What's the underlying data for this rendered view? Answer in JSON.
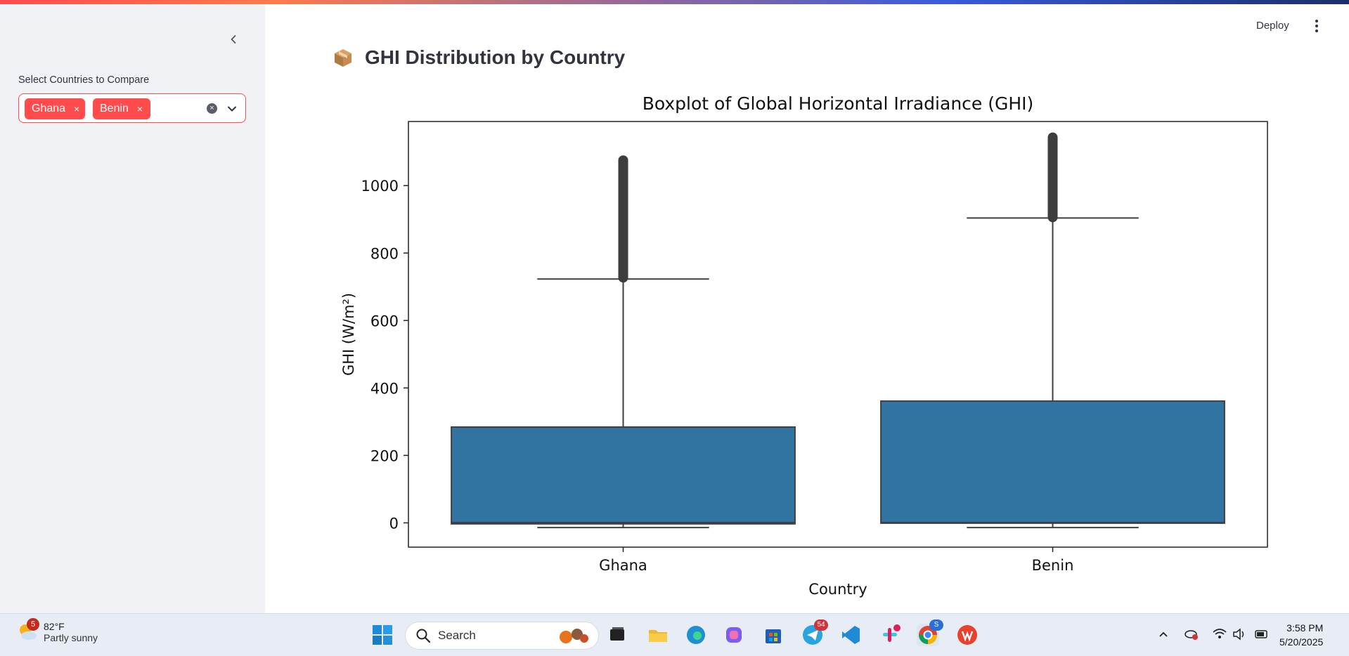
{
  "sidebar": {
    "select_label": "Select Countries to Compare",
    "selected": [
      "Ghana",
      "Benin"
    ],
    "chip_remove": "×",
    "clear_symbol": "×"
  },
  "header": {
    "deploy_label": "Deploy"
  },
  "page": {
    "title": "GHI Distribution by Country",
    "title_icon": "package-icon"
  },
  "chart_data": {
    "type": "box",
    "title": "Boxplot of Global Horizontal Irradiance (GHI)",
    "xlabel": "Country",
    "ylabel": "GHI (W/m²)",
    "categories": [
      "Ghana",
      "Benin"
    ],
    "ylim": [
      -72,
      1190
    ],
    "yticks": [
      0,
      200,
      400,
      600,
      800,
      1000
    ],
    "color": "#3274a1",
    "boxes": [
      {
        "category": "Ghana",
        "whisker_low": -14,
        "q1": -3,
        "median": 1,
        "q3": 284,
        "whisker_high": 723,
        "outliers_min": 727,
        "outliers_max": 1075
      },
      {
        "category": "Benin",
        "whisker_low": -14,
        "q1": -1,
        "median": 1,
        "q3": 361,
        "whisker_high": 904,
        "outliers_min": 906,
        "outliers_max": 1143
      }
    ],
    "grid": false,
    "legend": "none"
  },
  "taskbar": {
    "weather": {
      "temp": "82°F",
      "condition": "Partly sunny",
      "badge": "5"
    },
    "search_placeholder": "Search",
    "telegram_badge": "54",
    "chrome_badge": "S",
    "time": "3:58 PM",
    "date": "5/20/2025"
  }
}
